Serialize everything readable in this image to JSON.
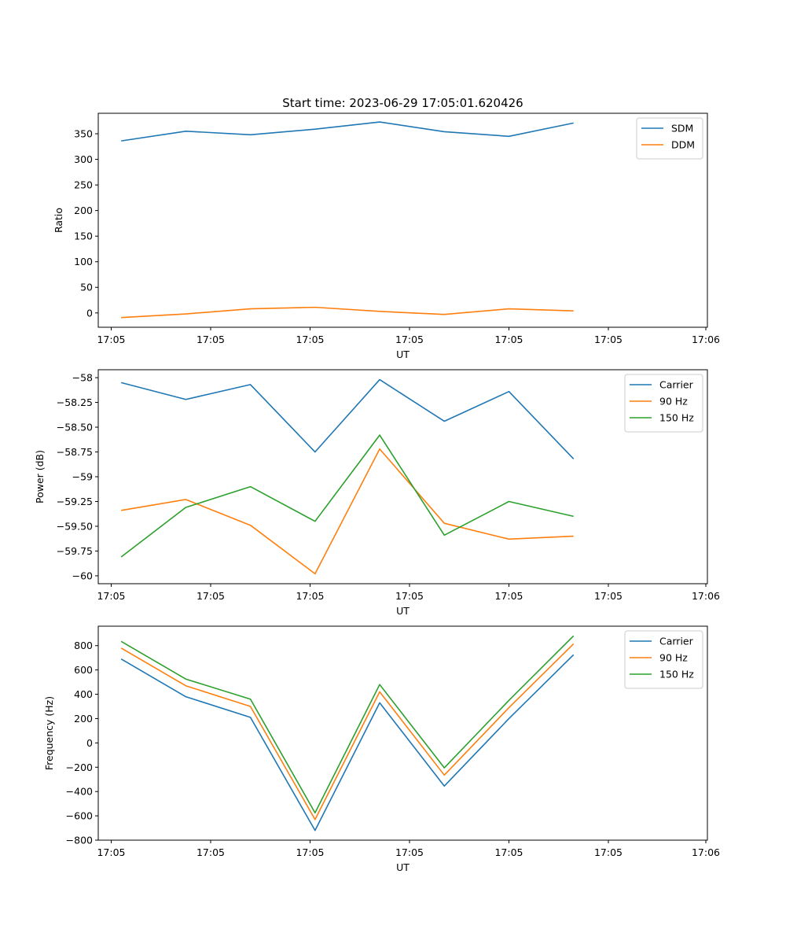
{
  "title": "Start time: 2023-06-29 17:05:01.620426",
  "chart_data": [
    {
      "type": "line",
      "x_ticks": [
        "17:05",
        "17:05",
        "17:05",
        "17:05",
        "17:05",
        "17:05",
        "17:06"
      ],
      "xlabel": "UT",
      "ylabel": "Ratio",
      "ylim": [
        -28,
        390
      ],
      "y_ticks": [
        0,
        50,
        100,
        150,
        200,
        250,
        300,
        350
      ],
      "x": [
        0.5,
        1.15,
        1.8,
        2.45,
        3.1,
        3.75,
        4.4,
        5.05
      ],
      "legend": "top-right",
      "series": [
        {
          "name": "SDM",
          "color": "#1f77b4",
          "values": [
            336,
            355,
            348,
            359,
            373,
            354,
            345,
            371
          ]
        },
        {
          "name": "DDM",
          "color": "#ff7f0e",
          "values": [
            -9,
            -2,
            8,
            11,
            3,
            -3,
            8,
            4
          ]
        }
      ]
    },
    {
      "type": "line",
      "x_ticks": [
        "17:05",
        "17:05",
        "17:05",
        "17:05",
        "17:05",
        "17:05",
        "17:06"
      ],
      "xlabel": "UT",
      "ylabel": "Power (dB)",
      "ylim": [
        -60.08,
        -57.92
      ],
      "y_ticks": [
        -60.0,
        -59.75,
        -59.5,
        -59.25,
        -59.0,
        -58.75,
        -58.5,
        -58.25,
        -58.0
      ],
      "x": [
        0.5,
        1.15,
        1.8,
        2.45,
        3.1,
        3.75,
        4.4,
        5.05
      ],
      "legend": "top-right",
      "series": [
        {
          "name": "Carrier",
          "color": "#1f77b4",
          "values": [
            -58.05,
            -58.22,
            -58.07,
            -58.75,
            -58.02,
            -58.44,
            -58.14,
            -58.82
          ]
        },
        {
          "name": "90 Hz",
          "color": "#ff7f0e",
          "values": [
            -59.34,
            -59.23,
            -59.49,
            -59.98,
            -58.72,
            -59.47,
            -59.63,
            -59.6
          ]
        },
        {
          "name": "150 Hz",
          "color": "#2ca02c",
          "values": [
            -59.81,
            -59.31,
            -59.1,
            -59.45,
            -58.58,
            -59.59,
            -59.25,
            -59.4
          ]
        }
      ]
    },
    {
      "type": "line",
      "x_ticks": [
        "17:05",
        "17:05",
        "17:05",
        "17:05",
        "17:05",
        "17:05",
        "17:06"
      ],
      "xlabel": "UT",
      "ylabel": "Frequency (Hz)",
      "ylim": [
        -800,
        960
      ],
      "y_ticks": [
        -800,
        -600,
        -400,
        -200,
        0,
        200,
        400,
        600,
        800
      ],
      "x": [
        0.5,
        1.15,
        1.8,
        2.45,
        3.1,
        3.75,
        4.4,
        5.05
      ],
      "legend": "top-right",
      "series": [
        {
          "name": "Carrier",
          "color": "#1f77b4",
          "values": [
            690,
            380,
            210,
            -720,
            330,
            -355,
            200,
            725
          ]
        },
        {
          "name": "90 Hz",
          "color": "#ff7f0e",
          "values": [
            780,
            470,
            300,
            -630,
            420,
            -265,
            290,
            815
          ]
        },
        {
          "name": "150 Hz",
          "color": "#2ca02c",
          "values": [
            835,
            525,
            360,
            -575,
            480,
            -205,
            350,
            880
          ]
        }
      ]
    }
  ]
}
